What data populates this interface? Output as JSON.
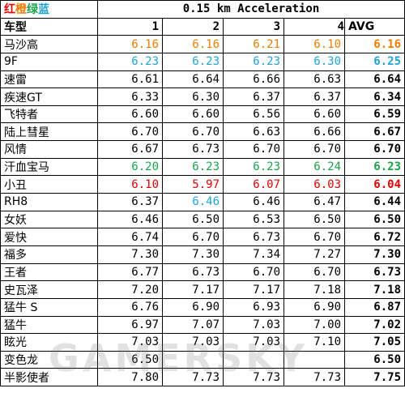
{
  "colors": {
    "red": "#e60000",
    "orange": "#f07c00",
    "green": "#1aa34a",
    "blue": "#1fa3d8",
    "black": "#000000"
  },
  "legend": {
    "red": "红",
    "orange": "橙",
    "green": "绿",
    "blue": "蓝"
  },
  "title": "0.15 km Acceleration",
  "headers": {
    "name": "车型",
    "c1": "1",
    "c2": "2",
    "c3": "3",
    "c4": "4",
    "avg": "AVG"
  },
  "rows": [
    {
      "name": "马沙高",
      "v": [
        "6.16",
        "6.16",
        "6.21",
        "6.10"
      ],
      "vc": [
        "orange",
        "orange",
        "orange",
        "orange"
      ],
      "avg": "6.16",
      "ac": "orange"
    },
    {
      "name": "9F",
      "v": [
        "6.23",
        "6.23",
        "6.23",
        "6.30"
      ],
      "vc": [
        "blue",
        "blue",
        "blue",
        "blue"
      ],
      "avg": "6.25",
      "ac": "blue"
    },
    {
      "name": "速雷",
      "v": [
        "6.61",
        "6.64",
        "6.66",
        "6.63"
      ],
      "vc": [
        "black",
        "black",
        "black",
        "black"
      ],
      "avg": "6.64",
      "ac": "black"
    },
    {
      "name": "疾速GT",
      "v": [
        "6.33",
        "6.30",
        "6.37",
        "6.37"
      ],
      "vc": [
        "black",
        "black",
        "black",
        "black"
      ],
      "avg": "6.34",
      "ac": "black"
    },
    {
      "name": "飞特者",
      "v": [
        "6.60",
        "6.60",
        "6.56",
        "6.60"
      ],
      "vc": [
        "black",
        "black",
        "black",
        "black"
      ],
      "avg": "6.59",
      "ac": "black"
    },
    {
      "name": "陆上彗星",
      "v": [
        "6.70",
        "6.70",
        "6.63",
        "6.66"
      ],
      "vc": [
        "black",
        "black",
        "black",
        "black"
      ],
      "avg": "6.67",
      "ac": "black"
    },
    {
      "name": "风情",
      "v": [
        "6.67",
        "6.73",
        "6.70",
        "6.70"
      ],
      "vc": [
        "black",
        "black",
        "black",
        "black"
      ],
      "avg": "6.70",
      "ac": "black"
    },
    {
      "name": "汗血宝马",
      "v": [
        "6.20",
        "6.23",
        "6.23",
        "6.24"
      ],
      "vc": [
        "green",
        "green",
        "green",
        "green"
      ],
      "avg": "6.23",
      "ac": "green"
    },
    {
      "name": "小丑",
      "v": [
        "6.10",
        "5.97",
        "6.07",
        "6.03"
      ],
      "vc": [
        "red",
        "red",
        "red",
        "red"
      ],
      "avg": "6.04",
      "ac": "red"
    },
    {
      "name": "RH8",
      "v": [
        "6.37",
        "6.46",
        "6.46",
        "6.47"
      ],
      "vc": [
        "black",
        "blue",
        "black",
        "black"
      ],
      "avg": "6.44",
      "ac": "black"
    },
    {
      "name": "女妖",
      "v": [
        "6.46",
        "6.50",
        "6.53",
        "6.50"
      ],
      "vc": [
        "black",
        "black",
        "black",
        "black"
      ],
      "avg": "6.50",
      "ac": "black"
    },
    {
      "name": "爱快",
      "v": [
        "6.74",
        "6.70",
        "6.73",
        "6.70"
      ],
      "vc": [
        "black",
        "black",
        "black",
        "black"
      ],
      "avg": "6.72",
      "ac": "black"
    },
    {
      "name": "福多",
      "v": [
        "7.30",
        "7.30",
        "7.34",
        "7.27"
      ],
      "vc": [
        "black",
        "black",
        "black",
        "black"
      ],
      "avg": "7.30",
      "ac": "black"
    },
    {
      "name": "王者",
      "v": [
        "6.77",
        "6.73",
        "6.70",
        "6.70"
      ],
      "vc": [
        "black",
        "black",
        "black",
        "black"
      ],
      "avg": "6.73",
      "ac": "black"
    },
    {
      "name": "史瓦泽",
      "v": [
        "7.20",
        "7.17",
        "7.17",
        "7.18"
      ],
      "vc": [
        "black",
        "black",
        "black",
        "black"
      ],
      "avg": "7.18",
      "ac": "black"
    },
    {
      "name": "猛牛 S",
      "v": [
        "6.76",
        "6.90",
        "6.93",
        "6.90"
      ],
      "vc": [
        "black",
        "black",
        "black",
        "black"
      ],
      "avg": "6.87",
      "ac": "black"
    },
    {
      "name": "猛牛",
      "v": [
        "6.97",
        "7.07",
        "7.03",
        "7.00"
      ],
      "vc": [
        "black",
        "black",
        "black",
        "black"
      ],
      "avg": "7.02",
      "ac": "black"
    },
    {
      "name": "眩光",
      "v": [
        "7.03",
        "7.03",
        "7.03",
        "7.10"
      ],
      "vc": [
        "black",
        "black",
        "black",
        "black"
      ],
      "avg": "7.05",
      "ac": "black"
    },
    {
      "name": "变色龙",
      "v": [
        "6.50",
        "",
        "",
        ""
      ],
      "vc": [
        "black",
        "black",
        "black",
        "black"
      ],
      "avg": "6.50",
      "ac": "black"
    },
    {
      "name": "半影使者",
      "v": [
        "7.80",
        "7.73",
        "7.73",
        "7.73"
      ],
      "vc": [
        "black",
        "black",
        "black",
        "black"
      ],
      "avg": "7.75",
      "ac": "black"
    }
  ],
  "watermark": "GAMERSKY"
}
